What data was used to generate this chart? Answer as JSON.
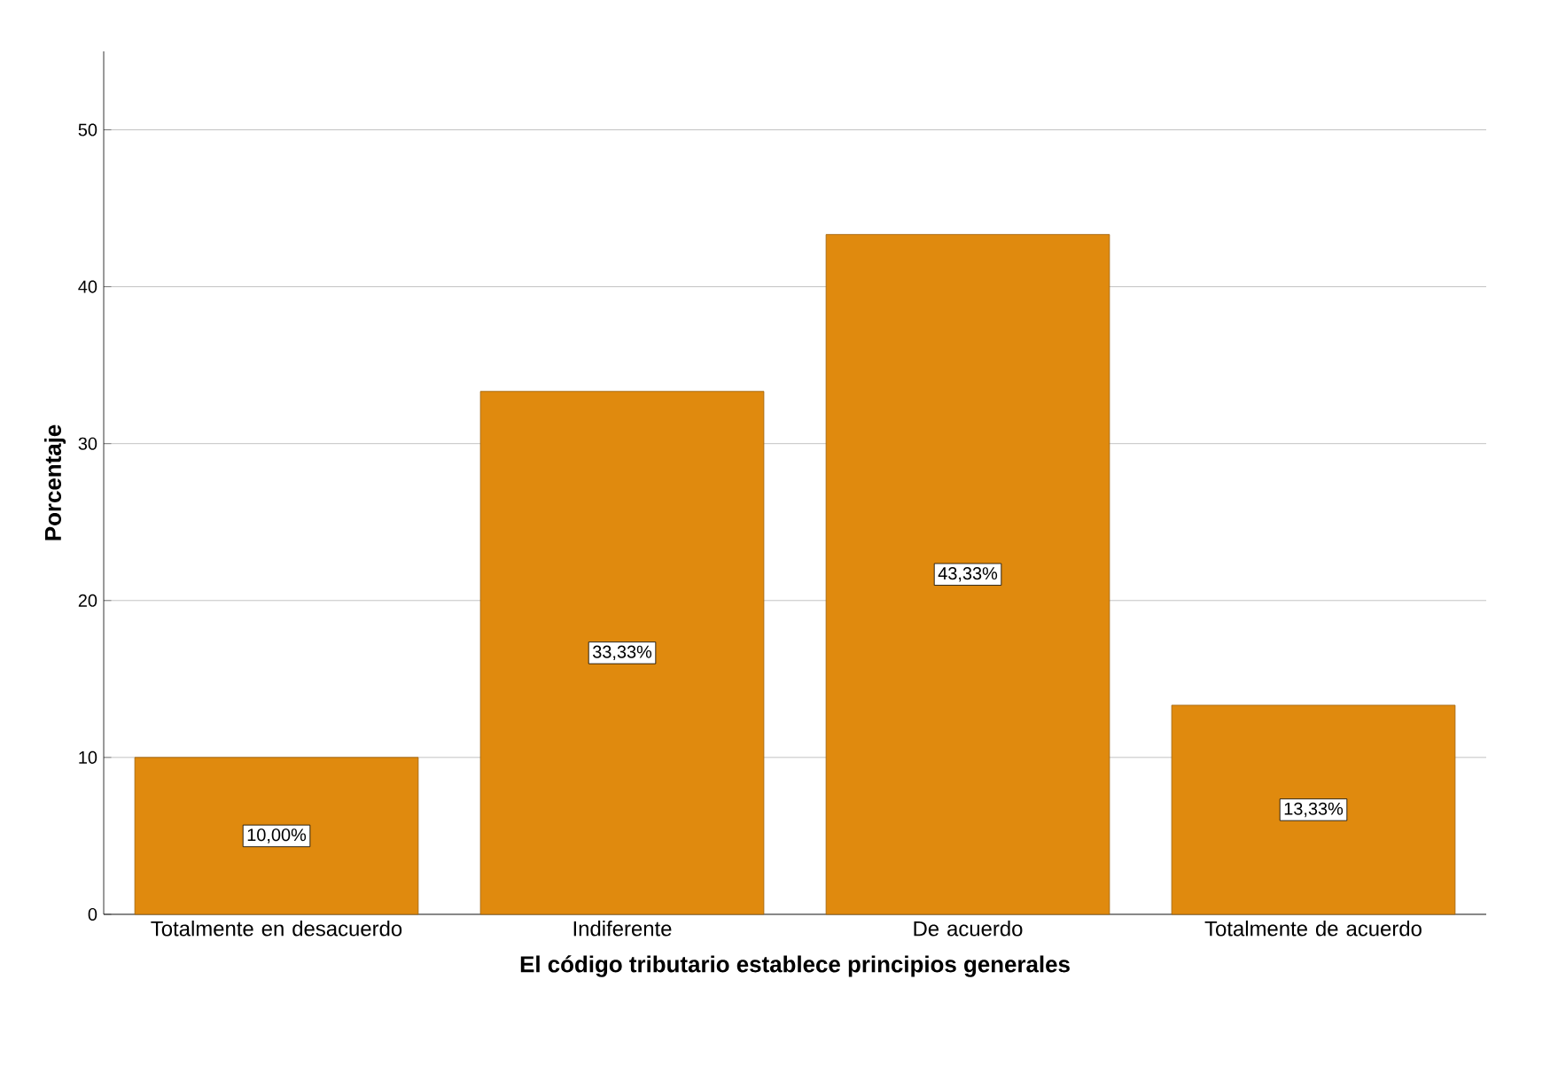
{
  "chart_data": {
    "type": "bar",
    "xlabel": "El código tributario establece principios generales",
    "ylabel": "Porcentaje",
    "categories": [
      "Totalmente en desacuerdo",
      "Indiferente",
      "De acuerdo",
      "Totalmente de acuerdo"
    ],
    "values": [
      10.0,
      33.33,
      43.33,
      13.33
    ],
    "value_labels": [
      "10,00%",
      "33,33%",
      "43,33%",
      "13,33%"
    ],
    "color": "#e08a0e",
    "ylim": [
      0,
      55
    ],
    "yticks": [
      0,
      10,
      20,
      30,
      40,
      50
    ],
    "grid": "y"
  }
}
